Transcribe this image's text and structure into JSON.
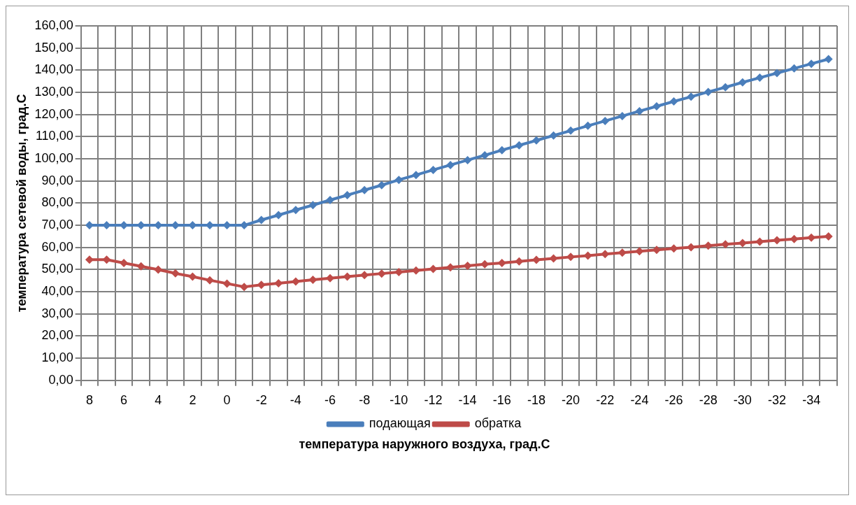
{
  "chart_data": {
    "type": "line",
    "xlabel": "температура наружного воздуха, град.С",
    "ylabel": "температура сетевой воды, град.С",
    "categories": [
      "8",
      null,
      "6",
      null,
      "4",
      null,
      "2",
      null,
      "0",
      null,
      "-2",
      null,
      "-4",
      null,
      "-6",
      null,
      "-8",
      null,
      "-10",
      null,
      "-12",
      null,
      "-14",
      null,
      "-16",
      null,
      "-18",
      null,
      "-20",
      null,
      "-22",
      null,
      "-24",
      null,
      "-26",
      null,
      "-28",
      null,
      "-30",
      null,
      "-32",
      null,
      "-34",
      null
    ],
    "series": [
      {
        "name": "подающая",
        "color": "#4a7ebb",
        "values": [
          70,
          70,
          70,
          70,
          70,
          70,
          70,
          70,
          70,
          70,
          72.4,
          74.6,
          76.9,
          79.1,
          81.4,
          83.6,
          85.9,
          88.1,
          90.5,
          92.7,
          95.0,
          97.2,
          99.4,
          101.6,
          103.9,
          106.1,
          108.3,
          110.5,
          112.7,
          114.9,
          117.1,
          119.3,
          121.5,
          123.7,
          125.9,
          128.0,
          130.2,
          132.3,
          134.5,
          136.6,
          138.7,
          140.8,
          142.9,
          145.0
        ]
      },
      {
        "name": "обратка",
        "color": "#be4b48",
        "values": [
          54.5,
          54.5,
          53,
          51.5,
          50,
          48.3,
          46.8,
          45.2,
          43.7,
          42.2,
          43.1,
          43.8,
          44.6,
          45.4,
          46.1,
          46.8,
          47.5,
          48.2,
          48.9,
          49.6,
          50.3,
          51.0,
          51.7,
          52.4,
          53.0,
          53.7,
          54.4,
          55.0,
          55.7,
          56.3,
          57.0,
          57.6,
          58.3,
          58.9,
          59.5,
          60.1,
          60.8,
          61.4,
          62.0,
          62.6,
          63.2,
          63.8,
          64.4,
          65.0
        ]
      }
    ],
    "ylim": [
      0,
      160
    ],
    "yticks": [
      {
        "value": 0,
        "label": "0,00"
      },
      {
        "value": 10,
        "label": "10,00"
      },
      {
        "value": 20,
        "label": "20,00"
      },
      {
        "value": 30,
        "label": "30,00"
      },
      {
        "value": 40,
        "label": "40,00"
      },
      {
        "value": 50,
        "label": "50,00"
      },
      {
        "value": 60,
        "label": "60,00"
      },
      {
        "value": 70,
        "label": "70,00"
      },
      {
        "value": 80,
        "label": "80,00"
      },
      {
        "value": 90,
        "label": "90,00"
      },
      {
        "value": 100,
        "label": "100,00"
      },
      {
        "value": 110,
        "label": "110,00"
      },
      {
        "value": 120,
        "label": "120,00"
      },
      {
        "value": 130,
        "label": "130,00"
      },
      {
        "value": 140,
        "label": "140,00"
      },
      {
        "value": 150,
        "label": "150,00"
      },
      {
        "value": 160,
        "label": "160,00"
      }
    ],
    "grid": true,
    "legend": "bottom",
    "marker": "diamond",
    "line_style": "solid"
  }
}
